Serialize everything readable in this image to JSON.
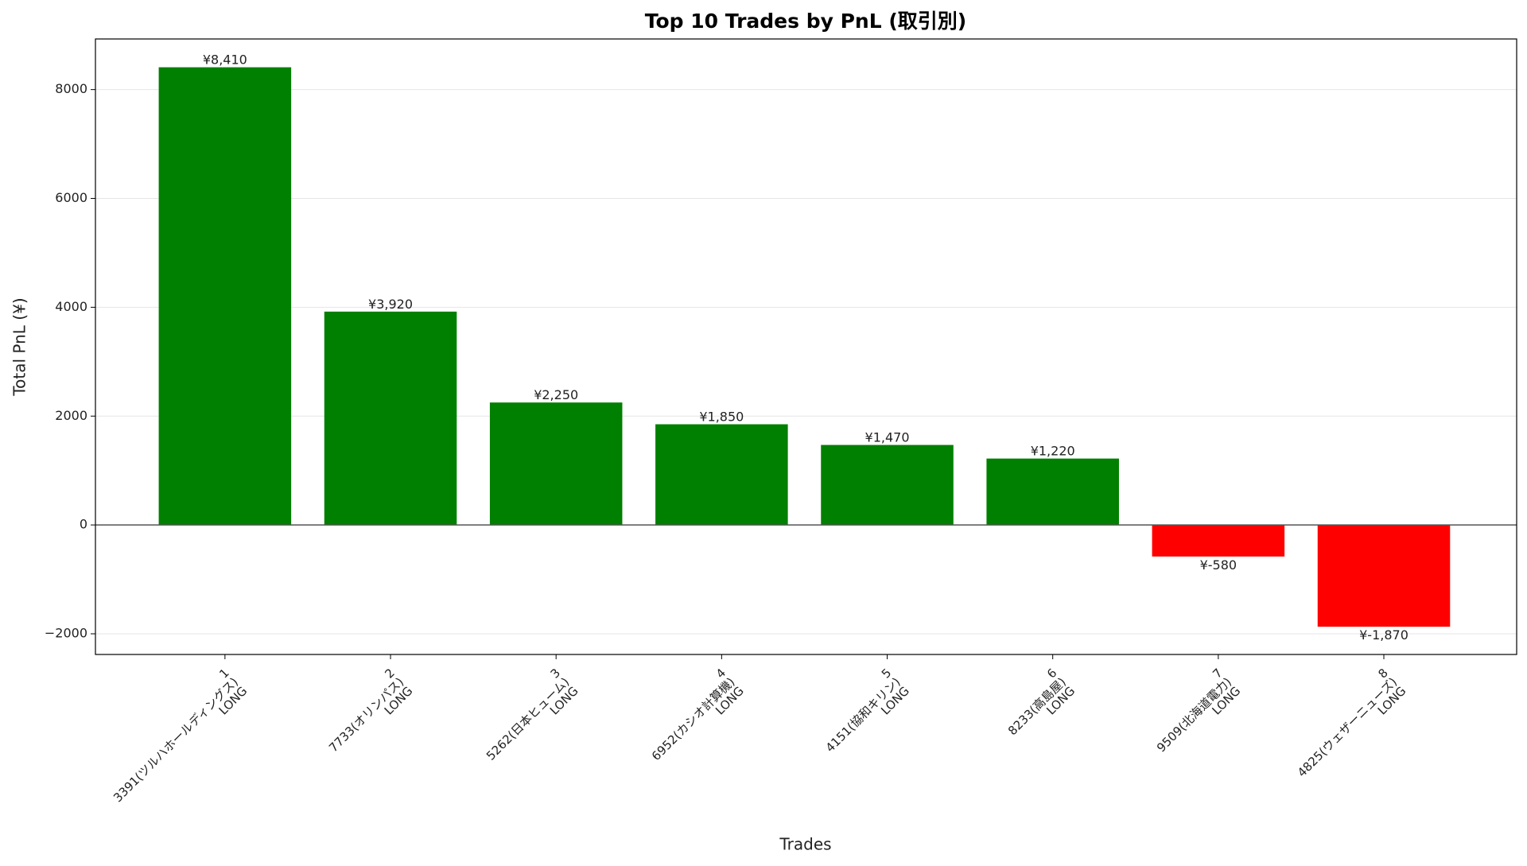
{
  "chart_data": {
    "type": "bar",
    "title": "Top 10 Trades by PnL (取引別)",
    "xlabel": "Trades",
    "ylabel": "Total PnL (¥)",
    "categories": [
      [
        "1",
        "3391(ツルハホールディングス)",
        "LONG"
      ],
      [
        "2",
        "7733(オリンパス)",
        "LONG"
      ],
      [
        "3",
        "5262(日本ヒューム)",
        "LONG"
      ],
      [
        "4",
        "6952(カシオ計算機)",
        "LONG"
      ],
      [
        "5",
        "4151(協和キリン)",
        "LONG"
      ],
      [
        "6",
        "8233(高島屋)",
        "LONG"
      ],
      [
        "7",
        "9509(北海道電力)",
        "LONG"
      ],
      [
        "8",
        "4825(ウェザーニューズ)",
        "LONG"
      ]
    ],
    "values": [
      8410,
      3920,
      2250,
      1850,
      1470,
      1220,
      -580,
      -1870
    ],
    "value_labels": [
      "¥8,410",
      "¥3,920",
      "¥2,250",
      "¥1,850",
      "¥1,470",
      "¥1,220",
      "¥-580",
      "¥-1,870"
    ],
    "colors": [
      "#008000",
      "#008000",
      "#008000",
      "#008000",
      "#008000",
      "#008000",
      "#ff0000",
      "#ff0000"
    ],
    "ylim": [
      -2380,
      8930
    ],
    "yticks": [
      {
        "value": -2000,
        "label": "−2000"
      },
      0,
      2000,
      4000,
      6000,
      8000
    ],
    "grid": true
  }
}
